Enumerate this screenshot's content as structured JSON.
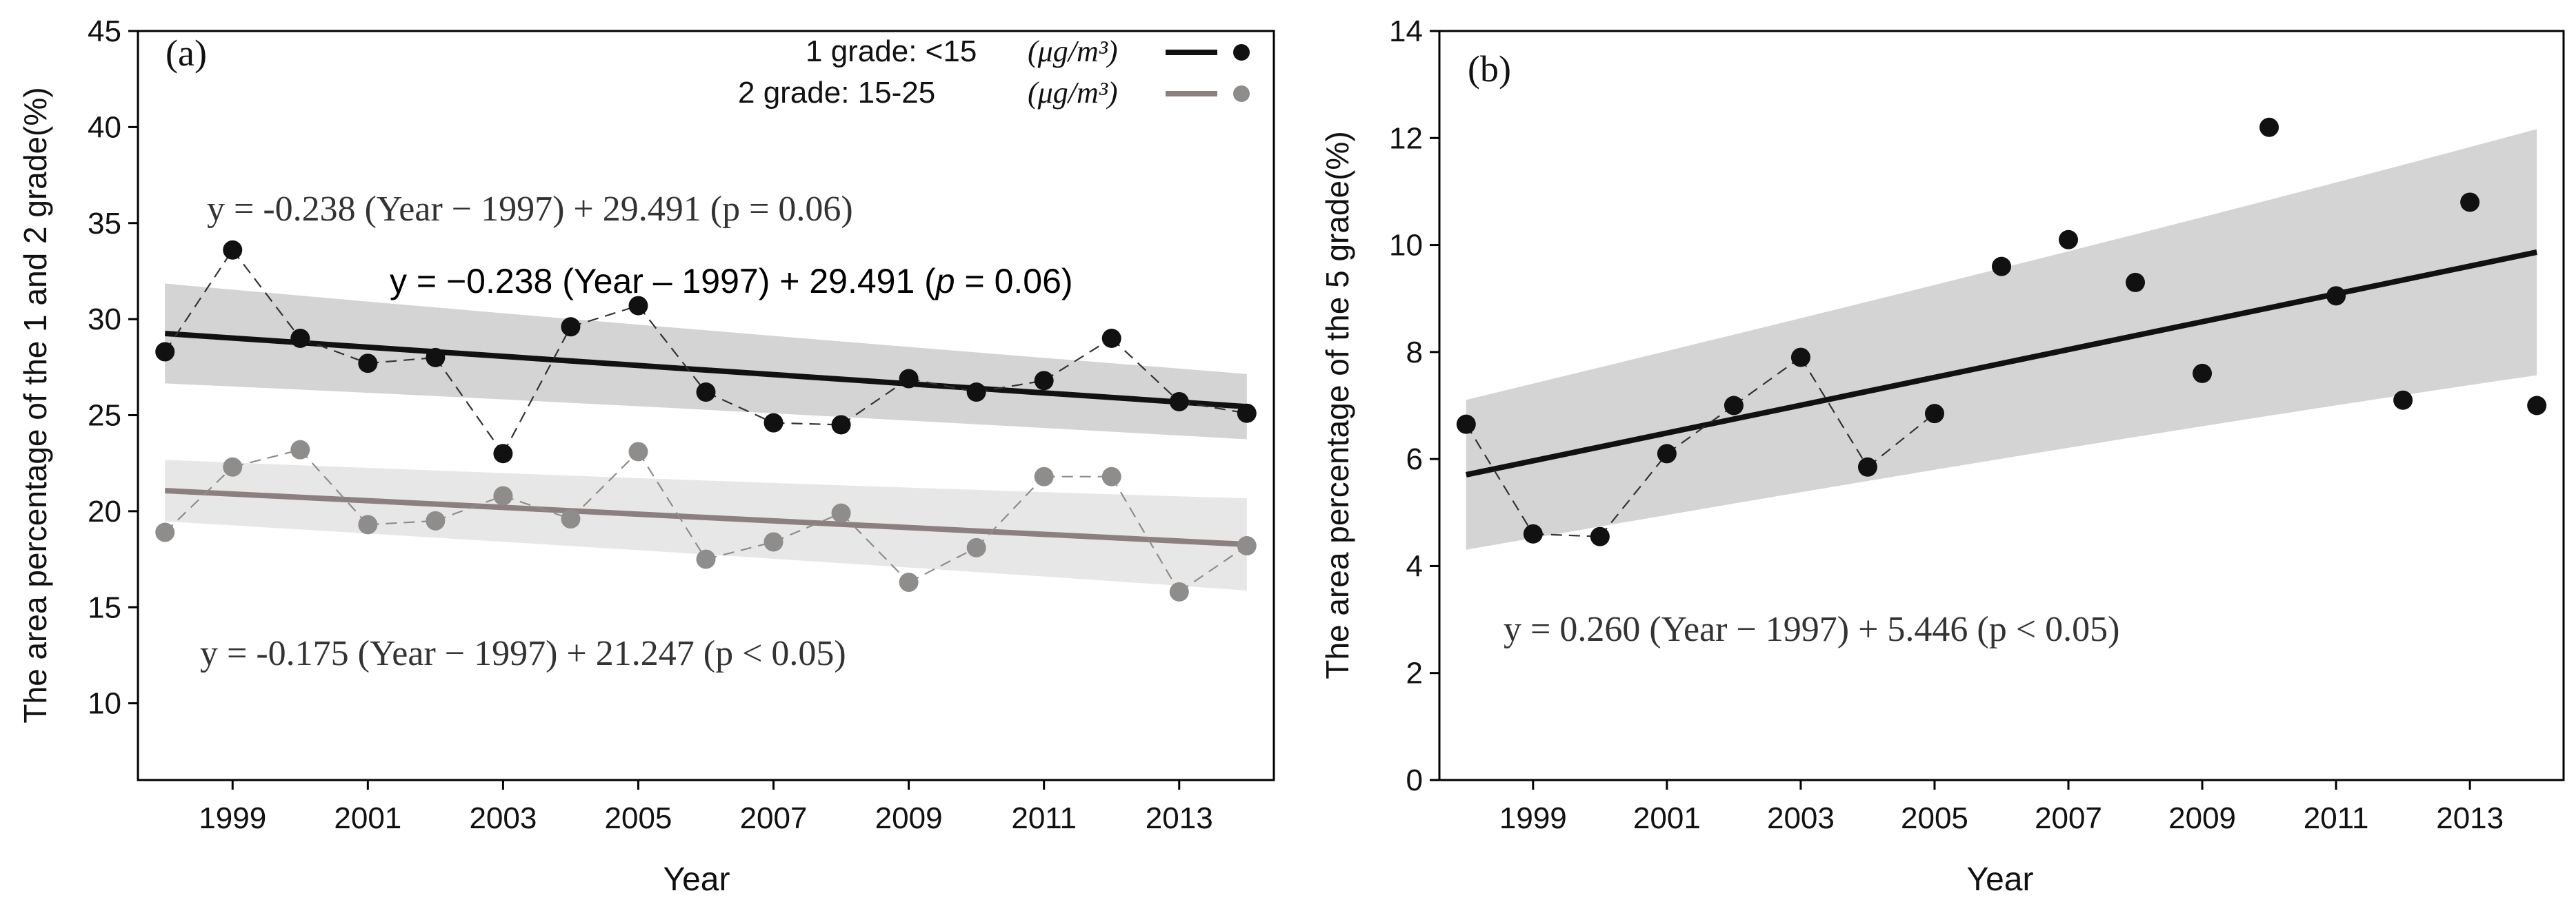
{
  "chart_data": [
    {
      "type": "line",
      "panel_label": "(a)",
      "xlabel": "Year",
      "ylabel": "The area percentage of the 1 and 2 grade(%)",
      "xlim": [
        1997.6,
        2014.4
      ],
      "ylim": [
        5,
        45
      ],
      "xticks": [
        1999,
        2001,
        2003,
        2005,
        2007,
        2009,
        2011,
        2013
      ],
      "xtick_labels": [
        "1999",
        "2001",
        "2003",
        "2005",
        "2007",
        "2009",
        "2011",
        "2013"
      ],
      "yticks": [
        10,
        15,
        20,
        25,
        30,
        35,
        40,
        45
      ],
      "ytick_labels": [
        "10",
        "15",
        "20",
        "25",
        "30",
        "35",
        "40",
        "45"
      ],
      "x": [
        1998,
        1999,
        2000,
        2001,
        2002,
        2003,
        2004,
        2005,
        2006,
        2007,
        2008,
        2009,
        2010,
        2011,
        2012,
        2013,
        2014
      ],
      "series": [
        {
          "name": "1 grade",
          "legend_label": "1 grade:    <15",
          "unit_label": "(μg/m³)",
          "line_color": "#111111",
          "point_color": "#111111",
          "band_color": "#d2d2d2",
          "values": [
            28.3,
            33.6,
            29.0,
            27.7,
            28.0,
            23.0,
            29.6,
            30.7,
            26.2,
            24.6,
            24.5,
            26.9,
            26.2,
            26.8,
            29.0,
            25.7,
            25.1
          ],
          "trend": {
            "slope": -0.238,
            "intercept": 29.491,
            "ci_halfwidth_start": 2.6,
            "ci_halfwidth_end": 1.7
          }
        },
        {
          "name": "2 grade",
          "legend_label": "2 grade: 15-25",
          "unit_label": "(μg/m³)",
          "line_color": "#8c7f7f",
          "point_color": "#8f8c8c",
          "band_color": "#e6e6e6",
          "values": [
            18.9,
            22.3,
            23.2,
            19.3,
            19.5,
            20.8,
            19.6,
            23.1,
            17.5,
            18.4,
            19.9,
            16.3,
            18.1,
            21.8,
            21.8,
            15.8,
            18.2
          ],
          "trend": {
            "slope": -0.175,
            "intercept": 21.247,
            "ci_halfwidth_start": 1.6,
            "ci_halfwidth_end": 2.4
          }
        }
      ],
      "annotations": [
        "y = -0.238 (Year − 1997) + 29.491 (p = 0.06)",
        "y = −0.238 (Year – 1997) + 29.491 (",
        "p",
        " = 0.06)",
        "y = -0.175 (Year − 1997) + 21.247 (p < 0.05)"
      ]
    },
    {
      "type": "line",
      "panel_label": "(b)",
      "xlabel": "Year",
      "ylabel": "The area percentage of the 5 grade(%)",
      "xlim": [
        1997.6,
        2014.4
      ],
      "ylim": [
        0,
        14
      ],
      "xticks": [
        1999,
        2001,
        2003,
        2005,
        2007,
        2009,
        2011,
        2013
      ],
      "xtick_labels": [
        "1999",
        "2001",
        "2003",
        "2005",
        "2007",
        "2009",
        "2011",
        "2013"
      ],
      "yticks": [
        0,
        2,
        4,
        6,
        8,
        10,
        12,
        14
      ],
      "ytick_labels": [
        "0",
        "2",
        "4",
        "6",
        "8",
        "10",
        "12",
        "14"
      ],
      "x": [
        1998,
        1999,
        2000,
        2001,
        2002,
        2003,
        2004,
        2005,
        2006,
        2007,
        2008,
        2009,
        2010,
        2011,
        2012,
        2013,
        2014
      ],
      "series": [
        {
          "name": "5 grade",
          "line_color": "#111111",
          "point_color": "#111111",
          "band_color": "#d2d2d2",
          "values": [
            6.65,
            4.6,
            4.55,
            6.1,
            7.0,
            7.9,
            5.85,
            6.85,
            9.6,
            10.1,
            9.3,
            7.6,
            12.2,
            9.05,
            7.1,
            10.8,
            7.0
          ],
          "dashed_until_index": 7,
          "trend": {
            "slope": 0.26,
            "intercept": 5.446,
            "ci_halfwidth_start": 1.4,
            "ci_halfwidth_end": 2.3
          }
        }
      ],
      "annotations": [
        "y = 0.260 (Year − 1997) + 5.446 (p < 0.05)"
      ]
    }
  ]
}
